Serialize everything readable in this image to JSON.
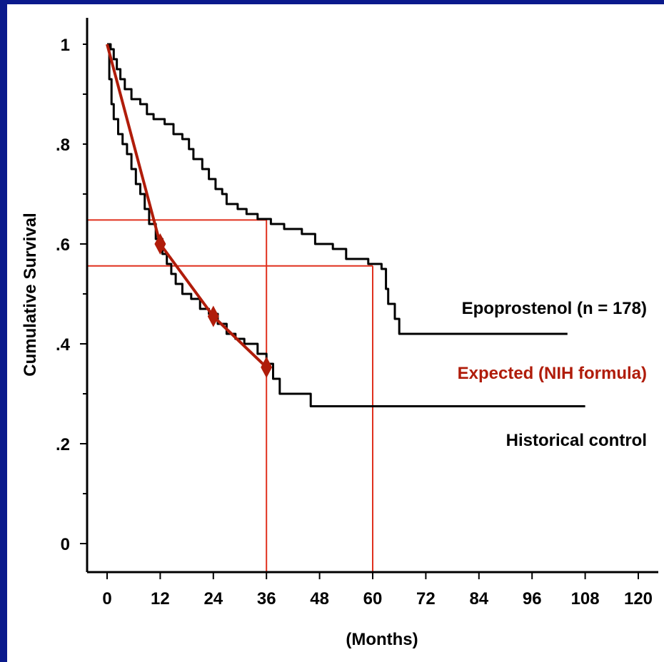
{
  "colors": {
    "background": "#ffffff",
    "frame": "#0a1a8c",
    "epoprostenol": "#000000",
    "historical": "#000000",
    "expected": "#b01c0a",
    "guide_lines": "#e0301e"
  },
  "chart_data": {
    "type": "line",
    "xlabel": "(Months)",
    "ylabel": "Cumulative Survival",
    "xlim": [
      0,
      120
    ],
    "ylim": [
      0,
      1
    ],
    "x_ticks": [
      {
        "value": 0,
        "label": "0"
      },
      {
        "value": 12,
        "label": "12"
      },
      {
        "value": 24,
        "label": "24"
      },
      {
        "value": 36,
        "label": "36"
      },
      {
        "value": 48,
        "label": "48"
      },
      {
        "value": 60,
        "label": "60"
      },
      {
        "value": 72,
        "label": "72"
      },
      {
        "value": 84,
        "label": "84"
      },
      {
        "value": 96,
        "label": "96"
      },
      {
        "value": 108,
        "label": "108"
      },
      {
        "value": 120,
        "label": "120"
      }
    ],
    "y_ticks": [
      {
        "value": 0,
        "label": "0"
      },
      {
        "value": 0.2,
        "label": ".2"
      },
      {
        "value": 0.4,
        "label": ".4"
      },
      {
        "value": 0.6,
        "label": ".6"
      },
      {
        "value": 0.8,
        "label": ".8"
      },
      {
        "value": 1.0,
        "label": "1"
      }
    ],
    "series": [
      {
        "name": "Epoprostenol (n = 178)",
        "style": "step",
        "points": [
          [
            0,
            1.0
          ],
          [
            0.8,
            0.99
          ],
          [
            1.5,
            0.97
          ],
          [
            2.2,
            0.95
          ],
          [
            3,
            0.93
          ],
          [
            4,
            0.91
          ],
          [
            5.5,
            0.89
          ],
          [
            7.5,
            0.88
          ],
          [
            9,
            0.86
          ],
          [
            10.5,
            0.85
          ],
          [
            13,
            0.84
          ],
          [
            15,
            0.82
          ],
          [
            17,
            0.81
          ],
          [
            18.5,
            0.79
          ],
          [
            19.5,
            0.77
          ],
          [
            21.5,
            0.75
          ],
          [
            23,
            0.73
          ],
          [
            24.5,
            0.71
          ],
          [
            26,
            0.7
          ],
          [
            27,
            0.68
          ],
          [
            29.5,
            0.67
          ],
          [
            31.5,
            0.66
          ],
          [
            34,
            0.65
          ],
          [
            37,
            0.64
          ],
          [
            40,
            0.63
          ],
          [
            44,
            0.62
          ],
          [
            47,
            0.6
          ],
          [
            51,
            0.59
          ],
          [
            54,
            0.57
          ],
          [
            59,
            0.56
          ],
          [
            62,
            0.55
          ],
          [
            63,
            0.51
          ],
          [
            63.5,
            0.48
          ],
          [
            65,
            0.45
          ],
          [
            66,
            0.42
          ],
          [
            104,
            0.42
          ]
        ]
      },
      {
        "name": "Historical control",
        "style": "step",
        "points": [
          [
            0,
            1.0
          ],
          [
            0.5,
            0.93
          ],
          [
            1,
            0.88
          ],
          [
            1.5,
            0.85
          ],
          [
            2.5,
            0.82
          ],
          [
            3.5,
            0.8
          ],
          [
            4.5,
            0.78
          ],
          [
            5.5,
            0.75
          ],
          [
            6.5,
            0.72
          ],
          [
            7.5,
            0.7
          ],
          [
            8.5,
            0.67
          ],
          [
            9.5,
            0.64
          ],
          [
            11,
            0.61
          ],
          [
            12.5,
            0.58
          ],
          [
            13.5,
            0.56
          ],
          [
            14.5,
            0.54
          ],
          [
            15.5,
            0.52
          ],
          [
            17,
            0.5
          ],
          [
            19,
            0.49
          ],
          [
            21,
            0.47
          ],
          [
            23,
            0.46
          ],
          [
            25,
            0.44
          ],
          [
            27,
            0.42
          ],
          [
            29,
            0.41
          ],
          [
            31,
            0.4
          ],
          [
            34,
            0.38
          ],
          [
            36,
            0.36
          ],
          [
            37.5,
            0.33
          ],
          [
            39,
            0.3
          ],
          [
            46,
            0.275
          ],
          [
            108,
            0.275
          ]
        ]
      },
      {
        "name": "Expected (NIH formula)",
        "style": "line",
        "markers": true,
        "points": [
          [
            0,
            1.0
          ],
          [
            12,
            0.6
          ],
          [
            24,
            0.455
          ],
          [
            36,
            0.353
          ]
        ]
      }
    ],
    "series_labels": {
      "epoprostenol": "Epoprostenol (n = 178)",
      "expected": "Expected (NIH formula)",
      "historical": "Historical control"
    },
    "guides": [
      {
        "x": 36,
        "y": 0.648
      },
      {
        "x": 60,
        "y": 0.556
      }
    ]
  }
}
